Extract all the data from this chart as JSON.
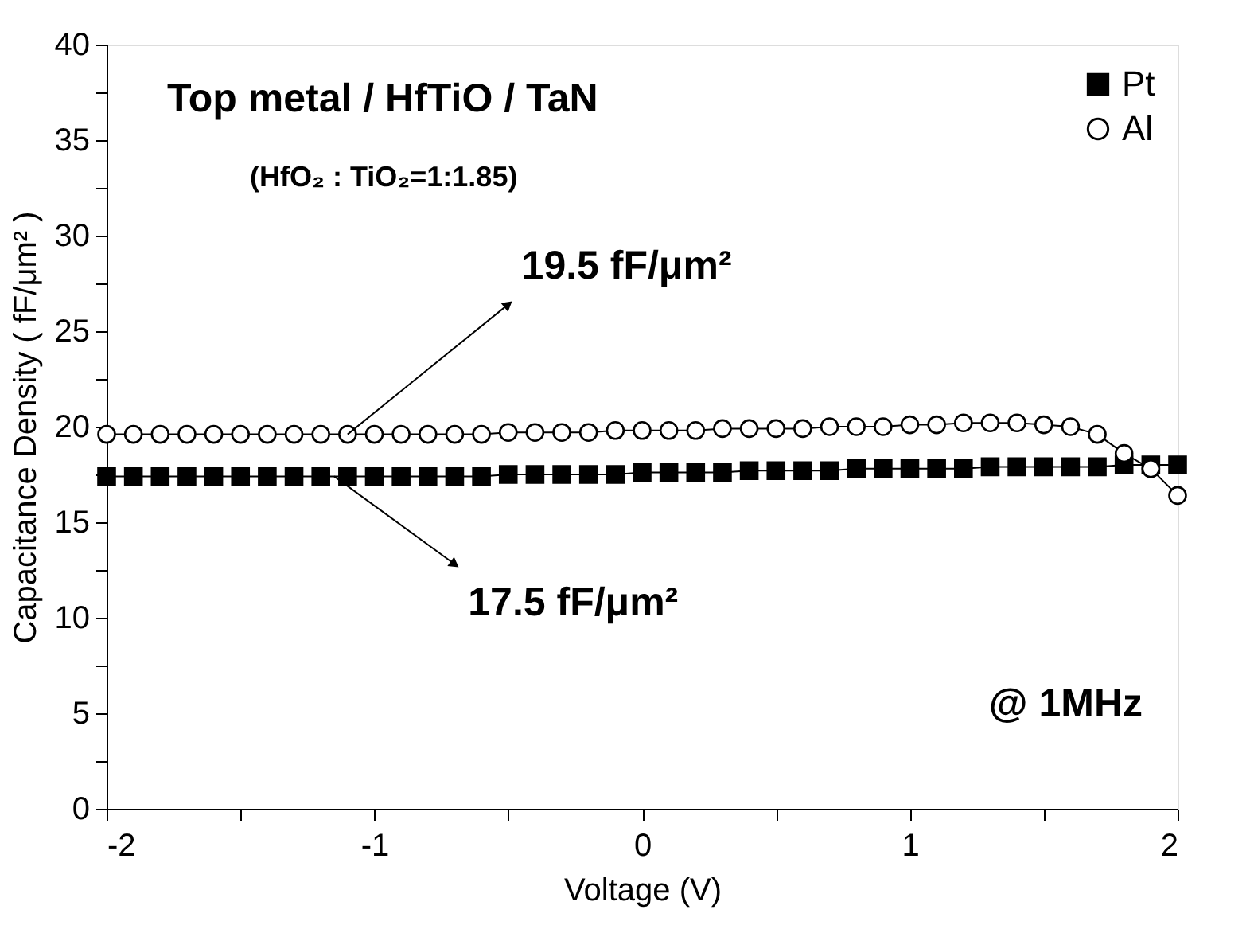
{
  "chart_data": {
    "type": "line",
    "title": "Top metal / HfTiO / TaN",
    "subtitle": "(HfO₂ : TiO₂=1:1.85)",
    "xlabel": "Voltage (V)",
    "ylabel": "Capacitance Density ( fF/μm² )",
    "x": [
      -2.0,
      -1.9,
      -1.8,
      -1.7,
      -1.6,
      -1.5,
      -1.4,
      -1.3,
      -1.2,
      -1.1,
      -1.0,
      -0.9,
      -0.8,
      -0.7,
      -0.6,
      -0.5,
      -0.4,
      -0.3,
      -0.2,
      -0.1,
      0.0,
      0.1,
      0.2,
      0.3,
      0.4,
      0.5,
      0.6,
      0.7,
      0.8,
      0.9,
      1.0,
      1.1,
      1.2,
      1.3,
      1.4,
      1.5,
      1.6,
      1.7,
      1.8,
      1.9,
      2.0
    ],
    "series": [
      {
        "name": "Pt",
        "color": "#000000",
        "marker": "square",
        "values": [
          17.4,
          17.4,
          17.4,
          17.4,
          17.4,
          17.4,
          17.4,
          17.4,
          17.4,
          17.4,
          17.4,
          17.4,
          17.4,
          17.4,
          17.4,
          17.5,
          17.5,
          17.5,
          17.5,
          17.5,
          17.6,
          17.6,
          17.6,
          17.6,
          17.7,
          17.7,
          17.7,
          17.7,
          17.8,
          17.8,
          17.8,
          17.8,
          17.8,
          17.9,
          17.9,
          17.9,
          17.9,
          17.9,
          18.0,
          18.0,
          18.0
        ]
      },
      {
        "name": "Al",
        "color": "#000000",
        "marker": "circle",
        "values": [
          19.6,
          19.6,
          19.6,
          19.6,
          19.6,
          19.6,
          19.6,
          19.6,
          19.6,
          19.6,
          19.6,
          19.6,
          19.6,
          19.6,
          19.6,
          19.7,
          19.7,
          19.7,
          19.7,
          19.8,
          19.8,
          19.8,
          19.8,
          19.9,
          19.9,
          19.9,
          19.9,
          20.0,
          20.0,
          20.0,
          20.1,
          20.1,
          20.2,
          20.2,
          20.2,
          20.1,
          20.0,
          19.6,
          18.6,
          17.8,
          16.4
        ]
      }
    ],
    "xlim": [
      -2,
      2
    ],
    "xticks": [
      -2,
      {
        "value": -1.5,
        "label": null
      },
      -1,
      {
        "value": -0.5,
        "label": null
      },
      0,
      {
        "value": 0.5,
        "label": null
      },
      1,
      {
        "value": 1.5,
        "label": null
      },
      2
    ],
    "ylim": [
      0,
      40
    ],
    "yticks": [
      0,
      {
        "value": 2.5,
        "label": null
      },
      5,
      {
        "value": 7.5,
        "label": null
      },
      10,
      {
        "value": 12.5,
        "label": null
      },
      15,
      {
        "value": 17.5,
        "label": null
      },
      20,
      {
        "value": 22.5,
        "label": null
      },
      25,
      {
        "value": 27.5,
        "label": null
      },
      30,
      {
        "value": 32.5,
        "label": null
      },
      35,
      {
        "value": 37.5,
        "label": null
      },
      40
    ],
    "annotations": [
      {
        "text": "19.5 fF/μm²",
        "x": -1.1,
        "y": 19.6
      },
      {
        "text": "17.5 fF/μm²",
        "x": -1.15,
        "y": 17.4
      },
      "@ 1MHz"
    ],
    "legend": "top right",
    "grid": false,
    "line_style": "solid"
  }
}
